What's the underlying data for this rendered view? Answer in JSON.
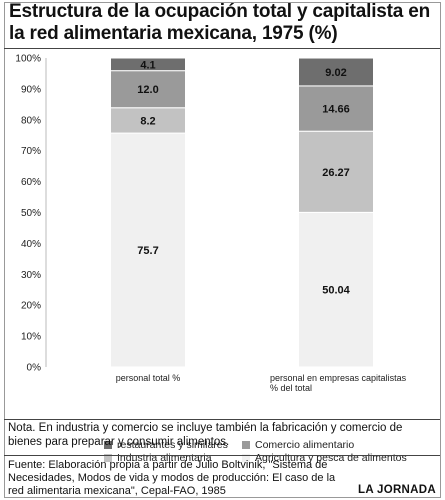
{
  "title": "Estructura de la ocupación total y capitalista en la red alimentaria mexicana, 1975 (%)",
  "note": "Nota. En industria y comercio se incluye también la fabricación y comercio de bienes para preparar y consumir alimentos.",
  "source": "Fuente: Elaboración propia a partir de Julio Boltvinik, \"Sistema de Necesidades, Modos de vida y modos de producción: El caso de la red alimentaria mexicana\",  Cepal-FAO, 1985",
  "brand": "LA JORNADA",
  "chart_data": {
    "type": "bar",
    "stacked": true,
    "categories": [
      "personal total %",
      "personal en empresas capitalistas % del total"
    ],
    "category_lines": [
      [
        "personal total %"
      ],
      [
        "personal en empresas capitalistas",
        "% del total"
      ]
    ],
    "series": [
      {
        "name": "Agricultura y pesca de alimentos",
        "values": [
          75.7,
          50.04
        ],
        "labels": [
          "75.7",
          "50.04"
        ],
        "color": "#f0f0f0"
      },
      {
        "name": "Industria alimentaria",
        "values": [
          8.2,
          26.27
        ],
        "labels": [
          "8.2",
          "26.27"
        ],
        "color": "#c2c2c2"
      },
      {
        "name": "Comercio alimentario",
        "values": [
          12.0,
          14.66
        ],
        "labels": [
          "12.0",
          "14.66"
        ],
        "color": "#9a9a9a"
      },
      {
        "name": "restaurantes y similares",
        "values": [
          4.1,
          9.02
        ],
        "labels": [
          "4.1",
          "9.02"
        ],
        "color": "#6e6e6e"
      }
    ],
    "label_colors": [
      "#111111",
      "#111111",
      "#111111",
      "#ffffff"
    ],
    "ylim": [
      0,
      100
    ],
    "yticks": [
      "0%",
      "10%",
      "20%",
      "30%",
      "40%",
      "50%",
      "60%",
      "70%",
      "80%",
      "90%",
      "100%"
    ],
    "grid": false,
    "legend_position": "bottom",
    "legend_order": [
      "restaurantes y similares",
      "Comercio alimentario",
      "Industria alimentaria",
      "Agricultura y pesca de alimentos"
    ]
  }
}
